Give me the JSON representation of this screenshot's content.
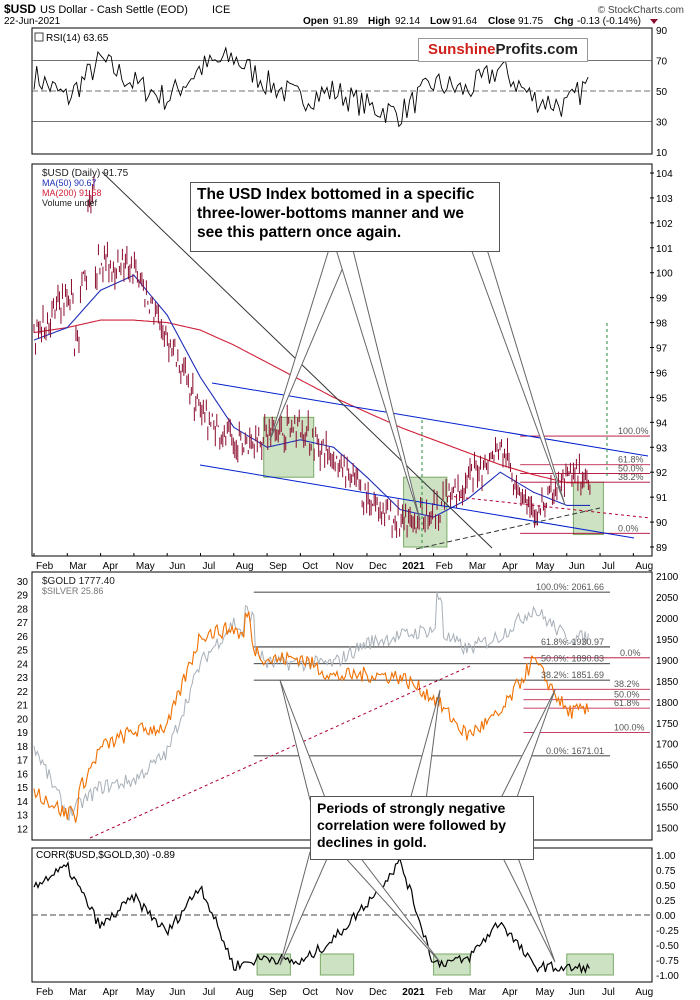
{
  "header": {
    "symbol": "$USD",
    "name": "US Dollar - Cash Settle (EOD)",
    "exchange": "ICE",
    "date": "22-Jun-2021",
    "attribution": "© StockCharts.com",
    "open_label": "Open",
    "open": "91.89",
    "high_label": "High",
    "high": "92.14",
    "low_label": "Low",
    "low": "91.64",
    "close_label": "Close",
    "close": "91.75",
    "chg_label": "Chg",
    "chg": "-0.13 (-0.14%)"
  },
  "brand": {
    "part1": "Sunshine",
    "part2": "Profits.com"
  },
  "colors": {
    "usd_candles": "#8b0c2e",
    "ma50": "#1f2fb8",
    "ma200": "#d0203a",
    "gold": "#f07000",
    "silver": "#a8b0b8",
    "corr": "#000000",
    "highlight": "#8fbf7a",
    "trend": "#0020d0",
    "fib_line": "#b00030",
    "rsi_line": "#000000"
  },
  "rsi_panel": {
    "label": "RSI(14) 63.65",
    "y_ticks": [
      "90",
      "70",
      "50",
      "30",
      "10"
    ]
  },
  "usd_panel": {
    "legend": [
      "$USD (Daily) 91.75",
      "MA(50) 90.67",
      "MA(200) 91.58",
      "Volume undef"
    ],
    "y_ticks": [
      "104",
      "103",
      "102",
      "101",
      "100",
      "99",
      "98",
      "97",
      "96",
      "95",
      "94",
      "93",
      "92",
      "91",
      "90",
      "89"
    ],
    "fib_labels": [
      "100.0%",
      "61.8%",
      "50.0%",
      "38.2%",
      "0.0%"
    ],
    "x_ticks": [
      "Feb",
      "Mar",
      "Apr",
      "May",
      "Jun",
      "Jul",
      "Aug",
      "Sep",
      "Oct",
      "Nov",
      "Dec",
      "2021",
      "Feb",
      "Mar",
      "Apr",
      "May",
      "Jun",
      "Jul",
      "Aug"
    ]
  },
  "gold_panel": {
    "legend": [
      "$GOLD 1777.40",
      "$SILVER 25.86"
    ],
    "y_ticks_left": [
      "30",
      "29",
      "28",
      "27",
      "26",
      "25",
      "24",
      "23",
      "22",
      "21",
      "20",
      "19",
      "18",
      "17",
      "16",
      "15",
      "14",
      "13",
      "12"
    ],
    "y_ticks_right": [
      "2100",
      "2050",
      "2000",
      "1950",
      "1900",
      "1850",
      "1800",
      "1750",
      "1700",
      "1650",
      "1600",
      "1550",
      "1500"
    ],
    "fib_labels": [
      "100.0%: 2061.66",
      "61.8%: 1930.97",
      "50.0%: 1890.83",
      "38.2%: 1851.69",
      "0.0%: 1671.01"
    ],
    "short_fib_labels": [
      "0.0%",
      "38.2%",
      "50.0%",
      "61.8%",
      "100.0%"
    ]
  },
  "corr_panel": {
    "label": "CORR($USD,$GOLD,30) -0.89",
    "y_ticks": [
      "1.00",
      "0.75",
      "0.50",
      "0.25",
      "0.00",
      "-0.25",
      "-0.50",
      "-0.75",
      "-1.00"
    ],
    "x_ticks": [
      "Feb",
      "Mar",
      "Apr",
      "May",
      "Jun",
      "Jul",
      "Aug",
      "Sep",
      "Oct",
      "Nov",
      "Dec",
      "2021",
      "Feb",
      "Mar",
      "Apr",
      "May",
      "Jun",
      "Jul",
      "Aug"
    ]
  },
  "annotations": {
    "usd_note": "The USD Index bottomed in a specific three-lower-bottoms manner and we see this pattern once again.",
    "gold_note": "Periods of strongly negative correlation were followed by declines in gold."
  },
  "chart_data": [
    {
      "type": "line",
      "title": "RSI(14) 63.65",
      "series": [
        {
          "name": "RSI(14)",
          "last": 63.65
        }
      ],
      "ylim": [
        10,
        90
      ],
      "reference_lines": [
        70,
        50,
        30
      ]
    },
    {
      "type": "line",
      "title": "$USD (Daily) 91.75",
      "x": [
        "2020-02",
        "2020-03",
        "2020-04",
        "2020-05",
        "2020-06",
        "2020-07",
        "2020-08",
        "2020-09",
        "2020-10",
        "2020-11",
        "2020-12",
        "2021-01",
        "2021-02",
        "2021-03",
        "2021-04",
        "2021-05",
        "2021-06"
      ],
      "series": [
        {
          "name": "$USD",
          "values": [
            97.5,
            99.0,
            100.0,
            99.5,
            96.8,
            94.5,
            93.0,
            93.5,
            93.8,
            92.5,
            91.0,
            89.9,
            90.5,
            91.6,
            93.0,
            90.2,
            91.75
          ]
        },
        {
          "name": "MA(50)",
          "values": [
            97.3,
            97.8,
            99.3,
            99.9,
            98.3,
            95.8,
            93.8,
            93.0,
            93.3,
            93.0,
            91.8,
            90.5,
            90.2,
            90.9,
            92.0,
            91.2,
            90.67
          ]
        },
        {
          "name": "MA(200)",
          "values": [
            97.6,
            97.8,
            98.1,
            98.1,
            98.0,
            97.7,
            97.1,
            96.4,
            95.7,
            95.0,
            94.4,
            93.8,
            93.3,
            92.8,
            92.3,
            91.9,
            91.58
          ]
        }
      ],
      "ohlc_last": {
        "open": 91.89,
        "high": 92.14,
        "low": 91.64,
        "close": 91.75,
        "chg": -0.13,
        "chg_pct": -0.14
      },
      "ylim": [
        89,
        104
      ],
      "fib_levels": {
        "100.0%": 93.45,
        "61.8%": 92.3,
        "50.0%": 91.95,
        "38.2%": 91.6,
        "0.0%": 89.55
      }
    },
    {
      "type": "line",
      "title": "$GOLD 1777.40 / $SILVER 25.86",
      "x": [
        "2020-02",
        "2020-03",
        "2020-04",
        "2020-05",
        "2020-06",
        "2020-07",
        "2020-08",
        "2020-09",
        "2020-10",
        "2020-11",
        "2020-12",
        "2021-01",
        "2021-02",
        "2021-03",
        "2021-04",
        "2021-05",
        "2021-06"
      ],
      "series": [
        {
          "name": "$GOLD",
          "axis": "right",
          "values": [
            1590,
            1530,
            1700,
            1730,
            1740,
            1960,
            1980,
            1900,
            1900,
            1860,
            1860,
            1860,
            1800,
            1710,
            1780,
            1900,
            1777.4
          ]
        },
        {
          "name": "$SILVER",
          "axis": "left",
          "values": [
            18,
            13,
            15,
            16,
            17.5,
            24,
            27,
            24,
            24,
            24,
            25,
            26,
            26,
            25,
            26,
            28,
            25.86
          ]
        }
      ],
      "ylim_left": [
        12,
        30
      ],
      "ylim_right": [
        1500,
        2100
      ],
      "fib_levels": {
        "100.0%": 2061.66,
        "61.8%": 1930.97,
        "50.0%": 1890.83,
        "38.2%": 1851.69,
        "0.0%": 1671.01
      }
    },
    {
      "type": "line",
      "title": "CORR($USD,$GOLD,30) -0.89",
      "x": [
        "2020-02",
        "2020-03",
        "2020-04",
        "2020-05",
        "2020-06",
        "2020-07",
        "2020-08",
        "2020-09",
        "2020-10",
        "2020-11",
        "2020-12",
        "2021-01",
        "2021-02",
        "2021-03",
        "2021-04",
        "2021-05",
        "2021-06"
      ],
      "series": [
        {
          "name": "CORR($USD,$GOLD,30)",
          "values": [
            0.5,
            0.8,
            -0.2,
            0.3,
            -0.3,
            0.5,
            -0.88,
            -0.85,
            -0.8,
            -0.4,
            0.2,
            0.9,
            -0.85,
            -0.8,
            -0.1,
            -0.85,
            -0.89
          ]
        }
      ],
      "ylim": [
        -1,
        1
      ],
      "reference_lines": [
        0
      ]
    }
  ]
}
